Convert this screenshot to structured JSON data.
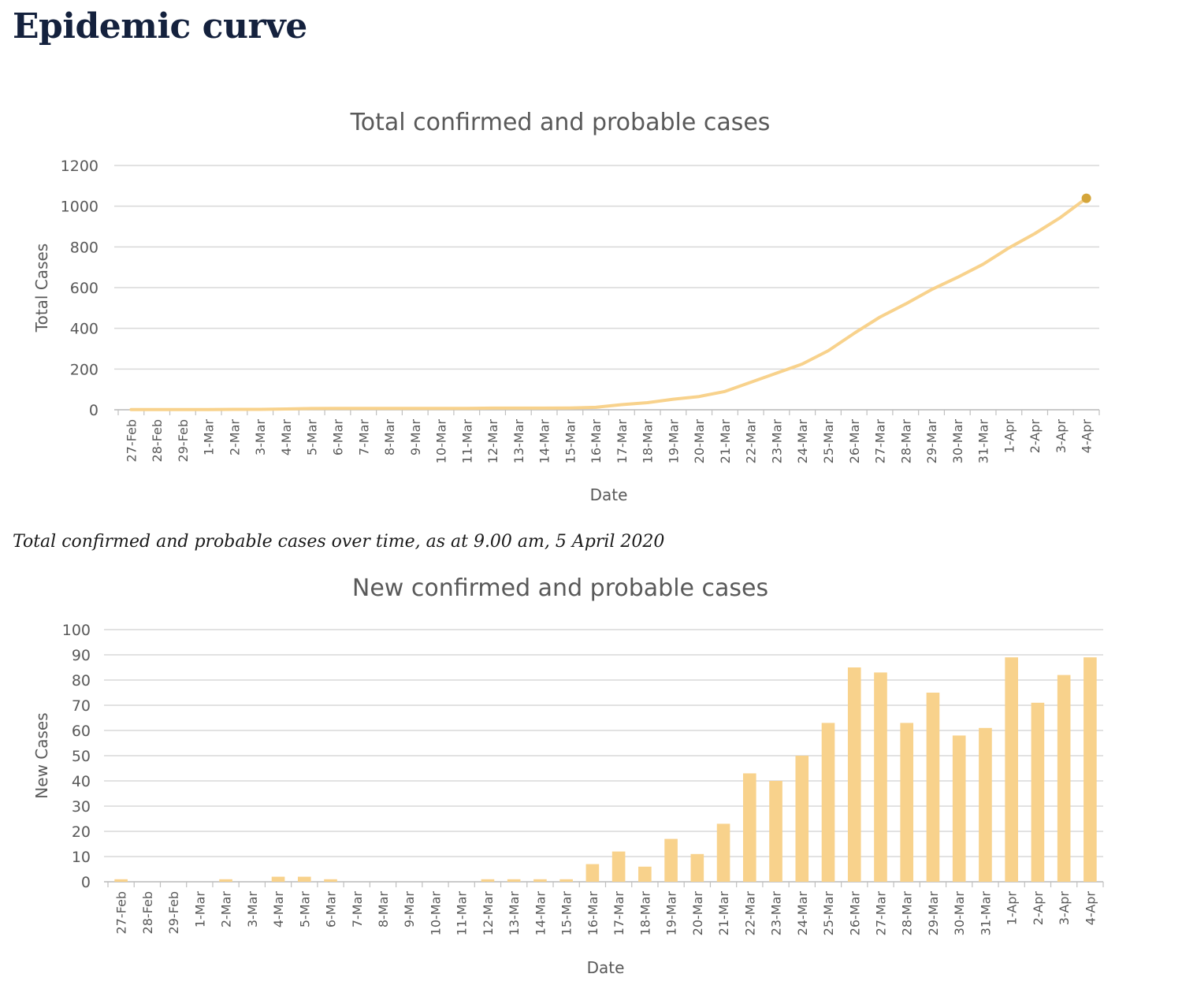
{
  "page": {
    "title": "Epidemic curve",
    "caption": "Total confirmed and probable cases over time, as at 9.00 am, 5 April 2020"
  },
  "colors": {
    "series": "#f8d28c",
    "endpoint": "#d4a53a",
    "grid": "#d9d9d9",
    "text": "#595959",
    "title": "#14213d"
  },
  "chart_data": [
    {
      "type": "line",
      "title": "Total confirmed and probable cases",
      "xlabel": "Date",
      "ylabel": "Total Cases",
      "ylim": [
        0,
        1200
      ],
      "yticks": [
        0,
        200,
        400,
        600,
        800,
        1000,
        1200
      ],
      "grid": true,
      "categories": [
        "27-Feb",
        "28-Feb",
        "29-Feb",
        "1-Mar",
        "2-Mar",
        "3-Mar",
        "4-Mar",
        "5-Mar",
        "6-Mar",
        "7-Mar",
        "8-Mar",
        "9-Mar",
        "10-Mar",
        "11-Mar",
        "12-Mar",
        "13-Mar",
        "14-Mar",
        "15-Mar",
        "16-Mar",
        "17-Mar",
        "18-Mar",
        "19-Mar",
        "20-Mar",
        "21-Mar",
        "22-Mar",
        "23-Mar",
        "24-Mar",
        "25-Mar",
        "26-Mar",
        "27-Mar",
        "28-Mar",
        "29-Mar",
        "30-Mar",
        "31-Mar",
        "1-Apr",
        "2-Apr",
        "3-Apr",
        "4-Apr"
      ],
      "values": [
        1,
        1,
        1,
        1,
        2,
        2,
        4,
        6,
        7,
        7,
        7,
        7,
        7,
        7,
        8,
        8,
        8,
        9,
        12,
        25,
        35,
        52,
        65,
        90,
        135,
        180,
        225,
        290,
        375,
        455,
        520,
        590,
        650,
        715,
        795,
        865,
        945,
        1039
      ]
    },
    {
      "type": "bar",
      "title": "New confirmed and probable cases",
      "xlabel": "Date",
      "ylabel": "New Cases",
      "ylim": [
        0,
        100
      ],
      "yticks": [
        0,
        10,
        20,
        30,
        40,
        50,
        60,
        70,
        80,
        90,
        100
      ],
      "grid": true,
      "categories": [
        "27-Feb",
        "28-Feb",
        "29-Feb",
        "1-Mar",
        "2-Mar",
        "3-Mar",
        "4-Mar",
        "5-Mar",
        "6-Mar",
        "7-Mar",
        "8-Mar",
        "9-Mar",
        "10-Mar",
        "11-Mar",
        "12-Mar",
        "13-Mar",
        "14-Mar",
        "15-Mar",
        "16-Mar",
        "17-Mar",
        "18-Mar",
        "19-Mar",
        "20-Mar",
        "21-Mar",
        "22-Mar",
        "23-Mar",
        "24-Mar",
        "25-Mar",
        "26-Mar",
        "27-Mar",
        "28-Mar",
        "29-Mar",
        "30-Mar",
        "31-Mar",
        "1-Apr",
        "2-Apr",
        "3-Apr",
        "4-Apr"
      ],
      "values": [
        1,
        0,
        0,
        0,
        1,
        0,
        2,
        2,
        1,
        0,
        0,
        0,
        0,
        0,
        1,
        1,
        1,
        1,
        7,
        12,
        6,
        17,
        11,
        23,
        43,
        40,
        50,
        63,
        85,
        83,
        63,
        75,
        58,
        61,
        89,
        71,
        82,
        89
      ]
    }
  ]
}
